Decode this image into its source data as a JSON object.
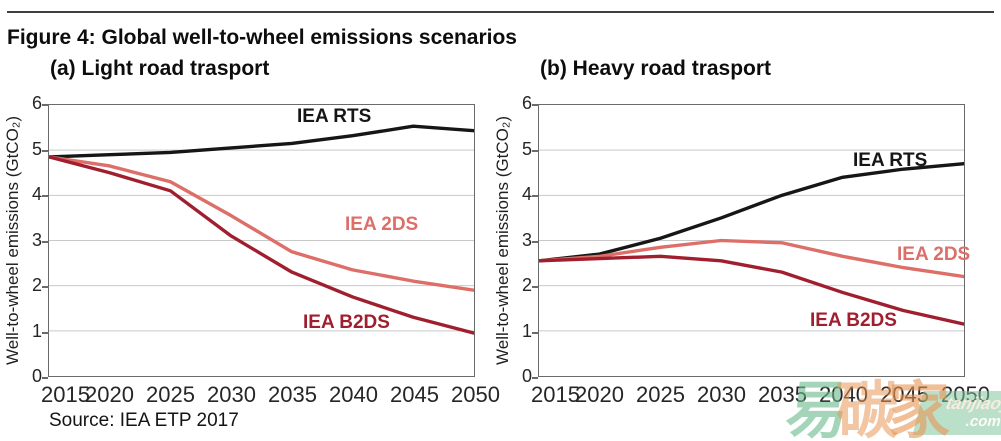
{
  "figure": {
    "title": "Figure 4: Global well-to-wheel emissions scenarios",
    "source": "Source: IEA ETP 2017"
  },
  "colors": {
    "rts": "#161616",
    "two_ds": "#dd6e68",
    "b2ds": "#a01f2f",
    "grid": "#c9c9c9",
    "axis_border": "#6a6a6a"
  },
  "chart_data": [
    {
      "type": "line",
      "title": "(a) Light road trasport",
      "ylabel": "Well-to-wheel emissions (GtCO₂)",
      "xlabel": "",
      "x": [
        2015,
        2020,
        2025,
        2030,
        2035,
        2040,
        2045,
        2050
      ],
      "xticks": [
        "2015",
        "2020",
        "2025",
        "2030",
        "2035",
        "2040",
        "2045",
        "2050"
      ],
      "yticks": [
        "6",
        "5",
        "4",
        "3",
        "2",
        "1",
        "0"
      ],
      "ylim": [
        0,
        6
      ],
      "grid": true,
      "legend_position": "inline-labels",
      "series": [
        {
          "name": "IEA RTS",
          "color": "#161616",
          "values": [
            4.85,
            4.9,
            4.95,
            5.05,
            5.15,
            5.32,
            5.53,
            5.43
          ]
        },
        {
          "name": "IEA 2DS",
          "color": "#dd6e68",
          "values": [
            4.85,
            4.65,
            4.3,
            3.55,
            2.75,
            2.35,
            2.1,
            1.9
          ]
        },
        {
          "name": "IEA B2DS",
          "color": "#a01f2f",
          "values": [
            4.85,
            4.5,
            4.1,
            3.1,
            2.3,
            1.75,
            1.3,
            0.95
          ]
        }
      ]
    },
    {
      "type": "line",
      "title": "(b) Heavy road trasport",
      "ylabel": "Well-to-wheel emissions (GtCO₂)",
      "xlabel": "",
      "x": [
        2015,
        2020,
        2025,
        2030,
        2035,
        2040,
        2045,
        2050
      ],
      "xticks": [
        "2015",
        "2020",
        "2025",
        "2030",
        "2035",
        "2040",
        "2045",
        "2050"
      ],
      "yticks": [
        "6",
        "5",
        "4",
        "3",
        "2",
        "1",
        "0"
      ],
      "ylim": [
        0,
        6
      ],
      "grid": true,
      "legend_position": "inline-labels",
      "series": [
        {
          "name": "IEA RTS",
          "color": "#161616",
          "values": [
            2.55,
            2.7,
            3.05,
            3.5,
            4.0,
            4.4,
            4.58,
            4.7
          ]
        },
        {
          "name": "IEA 2DS",
          "color": "#dd6e68",
          "values": [
            2.55,
            2.65,
            2.85,
            3.0,
            2.95,
            2.65,
            2.4,
            2.2
          ]
        },
        {
          "name": "IEA B2DS",
          "color": "#a01f2f",
          "values": [
            2.55,
            2.6,
            2.65,
            2.55,
            2.3,
            1.85,
            1.45,
            1.15
          ]
        }
      ]
    }
  ],
  "watermark": {
    "chars": [
      "易",
      "碳",
      "家"
    ],
    "badge_line1": "tanjiaoyi",
    "badge_line2": ".com"
  }
}
